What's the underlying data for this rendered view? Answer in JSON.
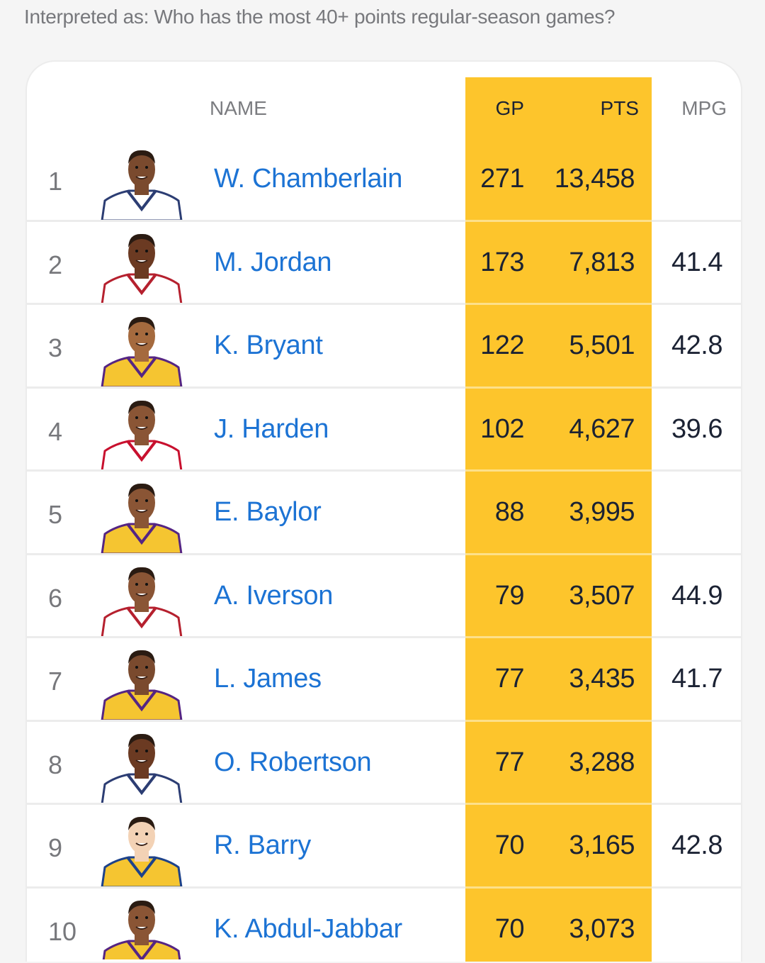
{
  "interpretation": "Interpreted as: Who has the most 40+ points regular-season games?",
  "accent_color": "#fdc52c",
  "columns": {
    "name": "NAME",
    "gp": "GP",
    "pts": "PTS",
    "mpg": "MPG"
  },
  "rows": [
    {
      "rank": "1",
      "name": "W. Chamberlain",
      "gp": "271",
      "pts": "13,458",
      "mpg": "",
      "skin": "#7a4a2e",
      "jersey": "#ffffff",
      "trim": "#2c3d73"
    },
    {
      "rank": "2",
      "name": "M. Jordan",
      "gp": "173",
      "pts": "7,813",
      "mpg": "41.4",
      "skin": "#6b3a22",
      "jersey": "#ffffff",
      "trim": "#b5202e"
    },
    {
      "rank": "3",
      "name": "K. Bryant",
      "gp": "122",
      "pts": "5,501",
      "mpg": "42.8",
      "skin": "#a56a3e",
      "jersey": "#f5c531",
      "trim": "#552583"
    },
    {
      "rank": "4",
      "name": "J. Harden",
      "gp": "102",
      "pts": "4,627",
      "mpg": "39.6",
      "skin": "#8a5535",
      "jersey": "#ffffff",
      "trim": "#c8102e"
    },
    {
      "rank": "5",
      "name": "E. Baylor",
      "gp": "88",
      "pts": "3,995",
      "mpg": "",
      "skin": "#8a5535",
      "jersey": "#f5c531",
      "trim": "#552583"
    },
    {
      "rank": "6",
      "name": "A. Iverson",
      "gp": "79",
      "pts": "3,507",
      "mpg": "44.9",
      "skin": "#8a5535",
      "jersey": "#ffffff",
      "trim": "#b5202e"
    },
    {
      "rank": "7",
      "name": "L. James",
      "gp": "77",
      "pts": "3,435",
      "mpg": "41.7",
      "skin": "#7a4a2e",
      "jersey": "#f5c531",
      "trim": "#552583"
    },
    {
      "rank": "8",
      "name": "O. Robertson",
      "gp": "77",
      "pts": "3,288",
      "mpg": "",
      "skin": "#6b3a22",
      "jersey": "#ffffff",
      "trim": "#2c3d73"
    },
    {
      "rank": "9",
      "name": "R. Barry",
      "gp": "70",
      "pts": "3,165",
      "mpg": "42.8",
      "skin": "#f3d2b5",
      "jersey": "#f5c531",
      "trim": "#1d428a"
    },
    {
      "rank": "10",
      "name": "K. Abdul-Jabbar",
      "gp": "70",
      "pts": "3,073",
      "mpg": "",
      "skin": "#8a5535",
      "jersey": "#f5c531",
      "trim": "#552583"
    }
  ]
}
